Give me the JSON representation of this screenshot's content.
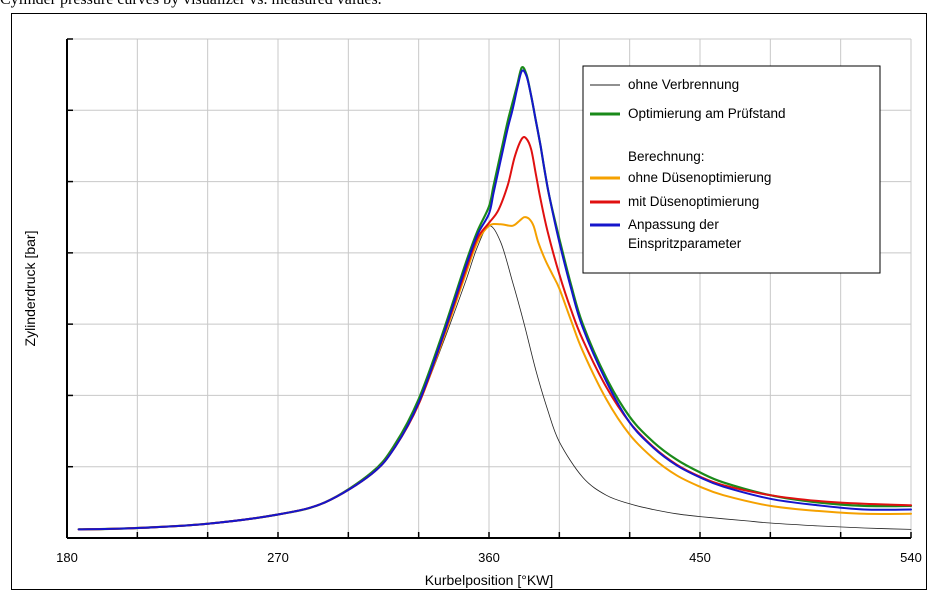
{
  "caption": "Cylinder pressure curves by visualizer vs. measured values.",
  "chart_data": {
    "type": "line",
    "title": "",
    "xlabel": "Kurbelposition [°KW]",
    "ylabel": "Zylinderdruck [bar]",
    "xlim": [
      180,
      540
    ],
    "ylim": [
      0,
      7
    ],
    "x_ticks": [
      180,
      270,
      360,
      450,
      540
    ],
    "x_ticks_labeled": [
      "180",
      "270",
      "360",
      "450",
      "540"
    ],
    "x_grid": [
      180,
      210,
      240,
      270,
      300,
      330,
      360,
      390,
      420,
      450,
      480,
      510,
      540
    ],
    "y_grid": [
      0,
      1,
      2,
      3,
      4,
      5,
      6,
      7
    ],
    "y_tick_labels": false,
    "grid": true,
    "legend_position": "top-right",
    "legend_heading": "Berechnung:",
    "series": [
      {
        "name": "ohne Verbrennung",
        "color": "#222222",
        "width": 0.8,
        "x": [
          185,
          210,
          240,
          270,
          290,
          310,
          320,
          330,
          340,
          350,
          355,
          360,
          365,
          370,
          375,
          380,
          385,
          390,
          400,
          410,
          420,
          430,
          440,
          450,
          460,
          470,
          480,
          500,
          520,
          540
        ],
        "y": [
          0.12,
          0.14,
          0.2,
          0.33,
          0.5,
          0.9,
          1.28,
          1.88,
          2.7,
          3.6,
          4.08,
          4.38,
          4.15,
          3.6,
          3.0,
          2.35,
          1.8,
          1.35,
          0.85,
          0.6,
          0.48,
          0.4,
          0.34,
          0.3,
          0.27,
          0.24,
          0.21,
          0.17,
          0.14,
          0.12
        ]
      },
      {
        "name": "Optimierung am Prüfstand",
        "color": "#1a8a1a",
        "width": 2.2,
        "x": [
          185,
          210,
          240,
          270,
          290,
          310,
          320,
          330,
          340,
          350,
          355,
          360,
          362,
          365,
          368,
          370,
          372,
          374,
          376,
          378,
          380,
          382,
          384,
          386,
          390,
          395,
          400,
          410,
          420,
          430,
          440,
          450,
          460,
          480,
          500,
          520,
          540
        ],
        "y": [
          0.12,
          0.14,
          0.2,
          0.33,
          0.5,
          0.92,
          1.32,
          1.95,
          2.85,
          3.85,
          4.3,
          4.65,
          4.95,
          5.4,
          5.85,
          6.1,
          6.35,
          6.6,
          6.5,
          6.2,
          5.85,
          5.5,
          5.1,
          4.75,
          4.2,
          3.55,
          3.0,
          2.25,
          1.7,
          1.35,
          1.1,
          0.92,
          0.78,
          0.6,
          0.5,
          0.45,
          0.45
        ]
      },
      {
        "name": "ohne Düsenoptimierung",
        "color": "#f5a100",
        "width": 2.0,
        "x": [
          185,
          210,
          240,
          270,
          290,
          310,
          320,
          330,
          340,
          350,
          355,
          360,
          365,
          370,
          373,
          375,
          377,
          379,
          381,
          384,
          387,
          390,
          395,
          400,
          410,
          420,
          430,
          440,
          450,
          460,
          480,
          500,
          520,
          540
        ],
        "y": [
          0.12,
          0.14,
          0.2,
          0.33,
          0.5,
          0.9,
          1.28,
          1.88,
          2.75,
          3.7,
          4.15,
          4.38,
          4.4,
          4.38,
          4.45,
          4.5,
          4.48,
          4.38,
          4.15,
          3.9,
          3.7,
          3.5,
          3.05,
          2.62,
          1.95,
          1.45,
          1.12,
          0.88,
          0.72,
          0.6,
          0.45,
          0.38,
          0.34,
          0.34
        ]
      },
      {
        "name": "mit Düsenoptimierung",
        "color": "#e01010",
        "width": 2.0,
        "x": [
          185,
          210,
          240,
          270,
          290,
          310,
          320,
          330,
          340,
          350,
          355,
          360,
          364,
          368,
          371,
          374,
          376,
          378,
          380,
          382,
          385,
          390,
          395,
          400,
          410,
          420,
          430,
          440,
          450,
          460,
          480,
          500,
          520,
          540
        ],
        "y": [
          0.12,
          0.14,
          0.2,
          0.33,
          0.5,
          0.9,
          1.28,
          1.88,
          2.78,
          3.75,
          4.2,
          4.42,
          4.6,
          4.95,
          5.35,
          5.6,
          5.6,
          5.45,
          5.1,
          4.75,
          4.3,
          3.7,
          3.2,
          2.78,
          2.12,
          1.62,
          1.28,
          1.03,
          0.86,
          0.74,
          0.6,
          0.52,
          0.48,
          0.46
        ]
      },
      {
        "name": "Anpassung der Einspritzparameter",
        "color": "#1515cc",
        "width": 2.0,
        "x": [
          185,
          210,
          240,
          270,
          290,
          310,
          320,
          330,
          340,
          350,
          355,
          360,
          362,
          365,
          368,
          370,
          372,
          374,
          376,
          378,
          380,
          382,
          384,
          386,
          390,
          395,
          400,
          410,
          420,
          430,
          440,
          450,
          460,
          480,
          500,
          520,
          540
        ],
        "y": [
          0.12,
          0.14,
          0.2,
          0.33,
          0.5,
          0.9,
          1.28,
          1.9,
          2.8,
          3.8,
          4.25,
          4.55,
          4.85,
          5.3,
          5.75,
          6.0,
          6.3,
          6.55,
          6.48,
          6.2,
          5.85,
          5.5,
          5.1,
          4.75,
          4.15,
          3.5,
          2.95,
          2.2,
          1.62,
          1.27,
          1.02,
          0.85,
          0.72,
          0.55,
          0.46,
          0.4,
          0.4
        ]
      }
    ]
  }
}
